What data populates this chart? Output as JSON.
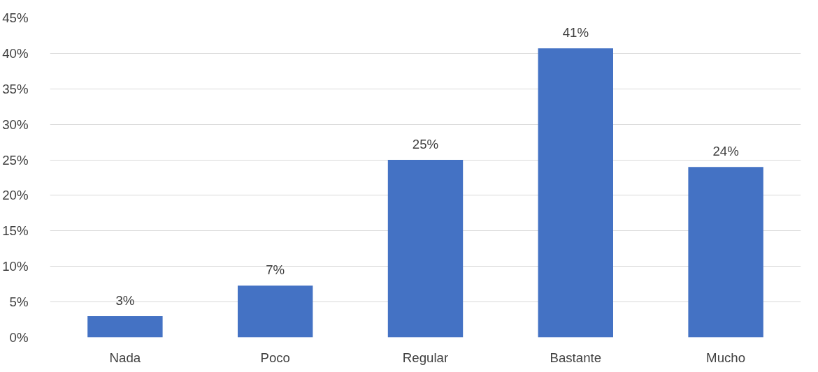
{
  "chart_data": {
    "type": "bar",
    "categories": [
      "Nada",
      "Poco",
      "Regular",
      "Bastante",
      "Mucho"
    ],
    "values": [
      3,
      7.3,
      25,
      40.7,
      24
    ],
    "value_labels": [
      "3%",
      "7%",
      "25%",
      "41%",
      "24%"
    ],
    "color": "#4472c4",
    "ylim": [
      0,
      45
    ],
    "yticks": [
      {
        "value": 0,
        "label": "0%"
      },
      {
        "value": 5,
        "label": "5%"
      },
      {
        "value": 10,
        "label": "10%"
      },
      {
        "value": 15,
        "label": "15%"
      },
      {
        "value": 20,
        "label": "20%"
      },
      {
        "value": 25,
        "label": "25%"
      },
      {
        "value": 30,
        "label": "30%"
      },
      {
        "value": 35,
        "label": "35%"
      },
      {
        "value": 40,
        "label": "40%"
      },
      {
        "value": 45,
        "label": "45%"
      }
    ],
    "grid": "y"
  }
}
